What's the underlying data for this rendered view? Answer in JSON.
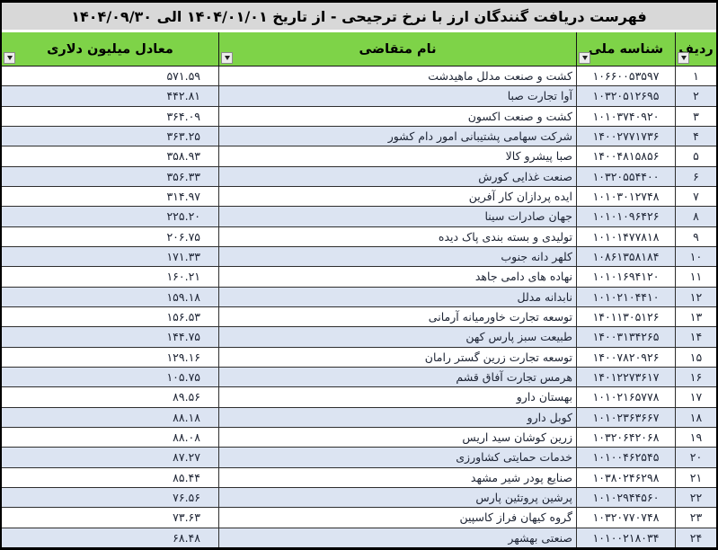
{
  "title": "فهرست دریافت گنندگان ارز با نرخ ترجیحی - از تاریخ ۱۴۰۴/۰۱/۰۱ الی ۱۴۰۴/۰۹/۳۰",
  "colors": {
    "header_green": "#7ED348",
    "alt_row_blue": "#DCE4F2",
    "title_gray": "#D8D8D8",
    "border_black": "#000000",
    "data_text": "#1C2333"
  },
  "table": {
    "columns": [
      {
        "key": "radif",
        "label": "ردیف"
      },
      {
        "key": "national_id",
        "label": "شناسه ملی"
      },
      {
        "key": "applicant_name",
        "label": "نام متقاضی"
      },
      {
        "key": "usd_million",
        "label": "معادل میلیون دلاری"
      }
    ],
    "rows": [
      {
        "radif": "۱",
        "national_id": "۱۰۶۶۰۰۵۳۵۹۷",
        "applicant_name": "کشت و صنعت مدلل ماهیدشت",
        "usd_million": "۵۷۱.۵۹"
      },
      {
        "radif": "۲",
        "national_id": "۱۰۳۲۰۵۱۲۶۹۵",
        "applicant_name": "آوا تجارت صبا",
        "usd_million": "۴۴۲.۸۱"
      },
      {
        "radif": "۳",
        "national_id": "۱۰۱۰۳۷۴۰۹۲۰",
        "applicant_name": "کشت و صنعت اکسون",
        "usd_million": "۳۶۴.۰۹"
      },
      {
        "radif": "۴",
        "national_id": "۱۴۰۰۲۷۷۱۷۳۶",
        "applicant_name": "شرکت سهامی پشتیبانی امور دام کشور",
        "usd_million": "۳۶۳.۲۵"
      },
      {
        "radif": "۵",
        "national_id": "۱۴۰۰۴۸۱۵۸۵۶",
        "applicant_name": "صبا پیشرو کالا",
        "usd_million": "۳۵۸.۹۳"
      },
      {
        "radif": "۶",
        "national_id": "۱۰۳۲۰۵۵۴۴۰۰",
        "applicant_name": "صنعت غذایی کورش",
        "usd_million": "۳۵۶.۳۳"
      },
      {
        "radif": "۷",
        "national_id": "۱۰۱۰۳۰۱۲۷۴۸",
        "applicant_name": "ایده پردازان کار آفرین",
        "usd_million": "۳۱۴.۹۷"
      },
      {
        "radif": "۸",
        "national_id": "۱۰۱۰۱۰۹۶۴۲۶",
        "applicant_name": "جهان صادرات سینا",
        "usd_million": "۲۲۵.۲۰"
      },
      {
        "radif": "۹",
        "national_id": "۱۰۱۰۱۴۷۷۸۱۸",
        "applicant_name": "تولیدی و بسته بندی پاک دیده",
        "usd_million": "۲۰۶.۷۵"
      },
      {
        "radif": "۱۰",
        "national_id": "۱۰۸۶۱۳۵۸۱۸۴",
        "applicant_name": "کلهر دانه جنوب",
        "usd_million": "۱۷۱.۳۳"
      },
      {
        "radif": "۱۱",
        "national_id": "۱۰۱۰۱۶۹۴۱۲۰",
        "applicant_name": "نهاده های دامی جاهد",
        "usd_million": "۱۶۰.۲۱"
      },
      {
        "radif": "۱۲",
        "national_id": "۱۰۱۰۲۱۰۴۴۱۰",
        "applicant_name": "نابدانه مدلل",
        "usd_million": "۱۵۹.۱۸"
      },
      {
        "radif": "۱۳",
        "national_id": "۱۴۰۱۱۳۰۵۱۲۶",
        "applicant_name": "توسعه تجارت خاورمیانه آرمانی",
        "usd_million": "۱۵۶.۵۳"
      },
      {
        "radif": "۱۴",
        "national_id": "۱۴۰۰۳۱۳۴۲۶۵",
        "applicant_name": "طبیعت سبز پارس کهن",
        "usd_million": "۱۴۴.۷۵"
      },
      {
        "radif": "۱۵",
        "national_id": "۱۴۰۰۷۸۲۰۹۲۶",
        "applicant_name": "توسعه تجارت زرین گستر رامان",
        "usd_million": "۱۲۹.۱۶"
      },
      {
        "radif": "۱۶",
        "national_id": "۱۴۰۱۲۲۷۳۶۱۷",
        "applicant_name": "هرمس تجارت آفاق قشم",
        "usd_million": "۱۰۵.۷۵"
      },
      {
        "radif": "۱۷",
        "national_id": "۱۰۱۰۲۱۶۵۷۷۸",
        "applicant_name": "بهستان دارو",
        "usd_million": "۸۹.۵۶"
      },
      {
        "radif": "۱۸",
        "national_id": "۱۰۱۰۲۳۶۳۶۶۷",
        "applicant_name": "کوبل دارو",
        "usd_million": "۸۸.۱۸"
      },
      {
        "radif": "۱۹",
        "national_id": "۱۰۳۲۰۶۴۲۰۶۸",
        "applicant_name": "زرین کوشان سید اریس",
        "usd_million": "۸۸.۰۸"
      },
      {
        "radif": "۲۰",
        "national_id": "۱۰۱۰۰۴۶۲۵۴۵",
        "applicant_name": "خدمات حمایتی کشاورزی",
        "usd_million": "۸۷.۲۷"
      },
      {
        "radif": "۲۱",
        "national_id": "۱۰۳۸۰۲۴۶۲۹۸",
        "applicant_name": "صنایع پودر شیر مشهد",
        "usd_million": "۸۵.۴۴"
      },
      {
        "radif": "۲۲",
        "national_id": "۱۰۱۰۲۹۴۴۵۶۰",
        "applicant_name": "پرشین پروتئین پارس",
        "usd_million": "۷۶.۵۶"
      },
      {
        "radif": "۲۳",
        "national_id": "۱۰۳۲۰۷۷۰۷۴۸",
        "applicant_name": "گروه کیهان فراز کاسپین",
        "usd_million": "۷۳.۶۳"
      },
      {
        "radif": "۲۴",
        "national_id": "۱۰۱۰۰۲۱۸۰۳۴",
        "applicant_name": "صنعتی بهشهر",
        "usd_million": "۶۸.۴۸"
      }
    ]
  }
}
